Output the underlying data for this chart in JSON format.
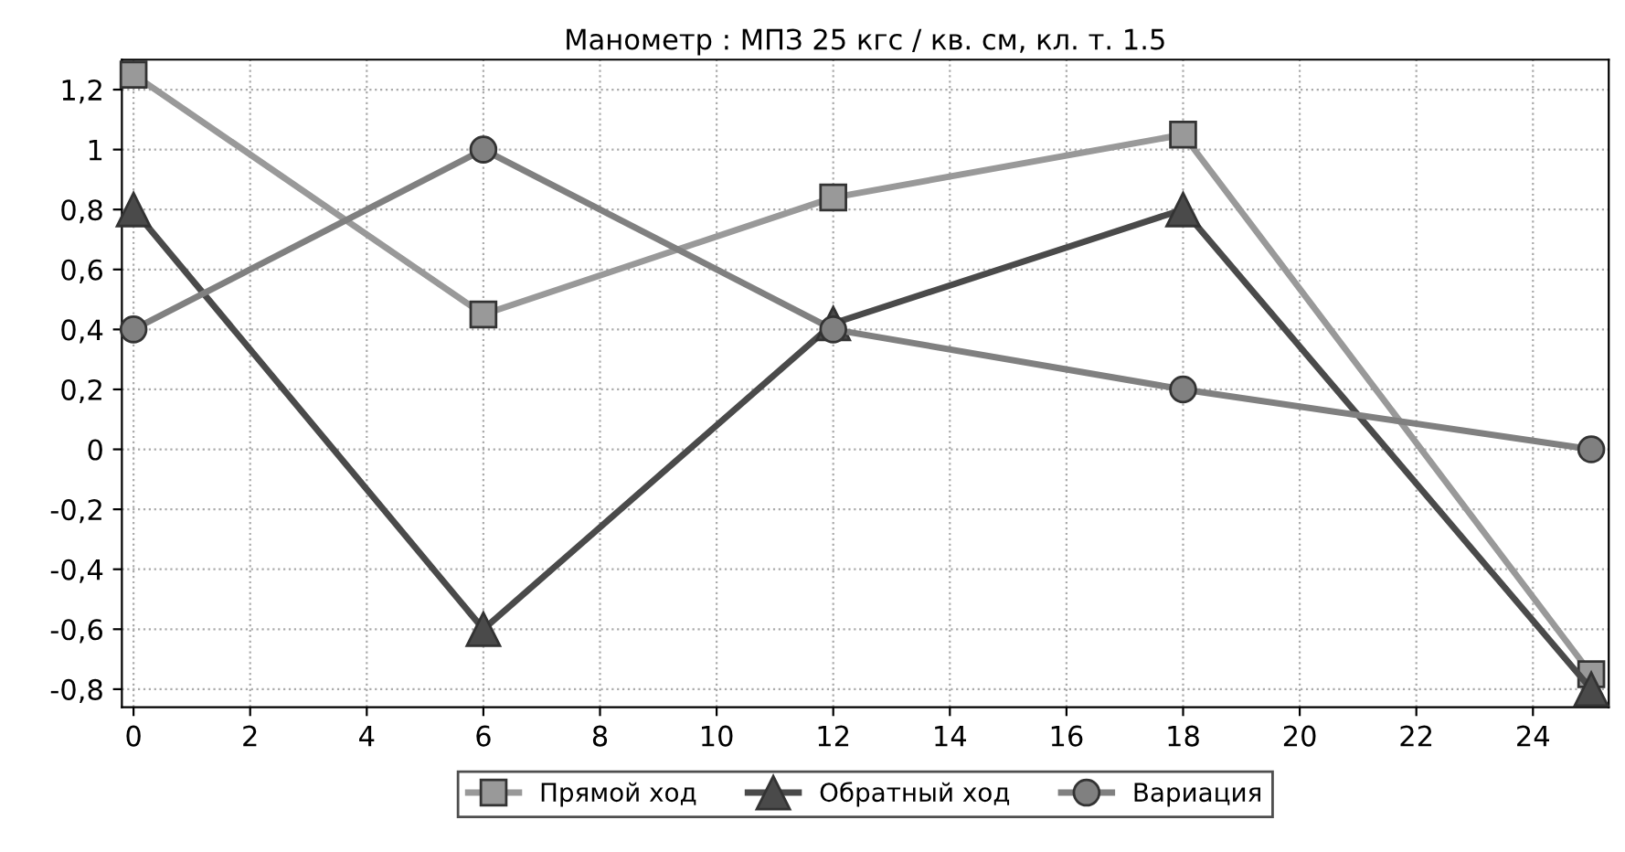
{
  "chart_data": {
    "type": "line",
    "title": "Манометр : МПЗ 25 кгс / кв. см, кл. т. 1.5",
    "x": [
      0,
      6,
      12,
      18,
      25
    ],
    "series": [
      {
        "name": "Прямой ход",
        "color": "#999999",
        "marker": "square",
        "values": [
          1.25,
          0.45,
          0.84,
          1.05,
          -0.75
        ]
      },
      {
        "name": "Обратный ход",
        "color": "#4a4a4a",
        "marker": "triangle",
        "values": [
          0.8,
          -0.6,
          0.42,
          0.8,
          -0.8
        ]
      },
      {
        "name": "Вариация",
        "color": "#808080",
        "marker": "circle",
        "values": [
          0.4,
          1.0,
          0.4,
          0.2,
          0.0
        ]
      }
    ],
    "xlim": [
      -0.2,
      25.3
    ],
    "ylim": [
      -0.86,
      1.3
    ],
    "xticks": [
      0,
      2,
      4,
      6,
      8,
      10,
      12,
      14,
      16,
      18,
      20,
      22,
      24
    ],
    "yticks": [
      {
        "value": -0.8,
        "label": "-0,8"
      },
      {
        "value": -0.6,
        "label": "-0,6"
      },
      {
        "value": -0.4,
        "label": "-0,4"
      },
      {
        "value": -0.2,
        "label": "-0,2"
      },
      0,
      {
        "value": 0.2,
        "label": "0,2"
      },
      {
        "value": 0.4,
        "label": "0,4"
      },
      {
        "value": 0.6,
        "label": "0,6"
      },
      {
        "value": 0.8,
        "label": "0,8"
      },
      1,
      {
        "value": 1.2,
        "label": "1,2"
      }
    ],
    "grid": true,
    "legend": "bottom",
    "line_style": "solid"
  }
}
